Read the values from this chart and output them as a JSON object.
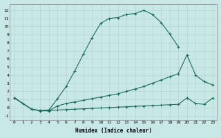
{
  "xlabel": "Humidex (Indice chaleur)",
  "bg_color": "#c8e8e8",
  "line_color": "#1a6b5a",
  "xlim": [
    -0.5,
    23.5
  ],
  "ylim": [
    -1.5,
    12.8
  ],
  "xticks": [
    0,
    1,
    2,
    3,
    4,
    5,
    6,
    7,
    8,
    9,
    10,
    11,
    12,
    13,
    14,
    15,
    16,
    17,
    18,
    19,
    20,
    21,
    22,
    23
  ],
  "yticks": [
    -1,
    0,
    1,
    2,
    3,
    4,
    5,
    6,
    7,
    8,
    9,
    10,
    11,
    12
  ],
  "line1_x": [
    0,
    1,
    2,
    3,
    4,
    5,
    6,
    7,
    8,
    9,
    10,
    11,
    12,
    13,
    14,
    15,
    16,
    17,
    18,
    19
  ],
  "line1_y": [
    1.2,
    0.5,
    -0.2,
    -0.35,
    -0.3,
    1.1,
    2.6,
    4.5,
    6.6,
    8.6,
    10.4,
    11.0,
    11.1,
    11.5,
    11.6,
    12.0,
    11.5,
    10.5,
    9.1,
    7.5
  ],
  "line2_x": [
    0,
    2,
    3,
    4,
    5,
    6,
    7,
    8,
    9,
    10,
    11,
    12,
    13,
    14,
    15,
    16,
    17,
    18,
    19,
    20,
    21,
    22,
    23
  ],
  "line2_y": [
    1.2,
    -0.2,
    -0.4,
    -0.4,
    0.2,
    0.5,
    0.7,
    0.9,
    1.1,
    1.3,
    1.5,
    1.7,
    2.0,
    2.3,
    2.6,
    3.0,
    3.4,
    3.8,
    4.2,
    6.5,
    4.0,
    3.2,
    2.8
  ],
  "line3_x": [
    0,
    2,
    3,
    4,
    5,
    6,
    7,
    8,
    9,
    10,
    11,
    12,
    13,
    14,
    15,
    16,
    17,
    18,
    19,
    20,
    21,
    22,
    23
  ],
  "line3_y": [
    1.2,
    -0.2,
    -0.4,
    -0.4,
    -0.3,
    -0.25,
    -0.2,
    -0.15,
    -0.1,
    -0.05,
    0.0,
    0.05,
    0.1,
    0.15,
    0.2,
    0.25,
    0.3,
    0.35,
    0.4,
    1.2,
    0.5,
    0.4,
    1.2
  ]
}
